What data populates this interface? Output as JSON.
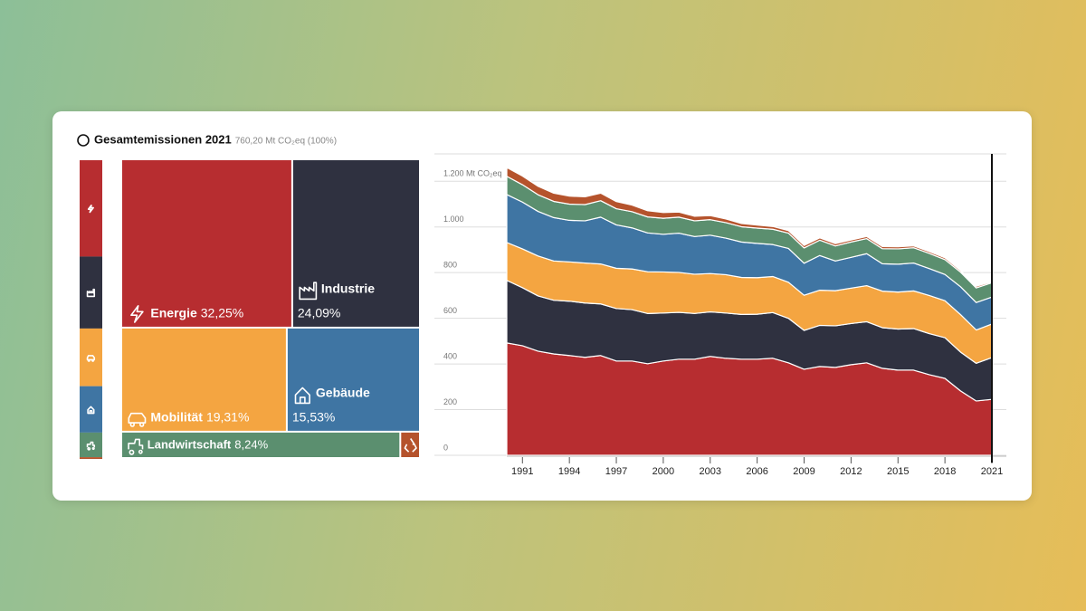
{
  "chart_data": [
    {
      "type": "treemap",
      "title": "Gesamtemissionen 2021",
      "subtitle": "760,20 Mt CO₂eq (100%)",
      "categories": [
        "Energie",
        "Industrie",
        "Mobilität",
        "Gebäude",
        "Landwirtschaft",
        null
      ],
      "values": [
        32.25,
        24.09,
        19.31,
        15.53,
        8.24,
        0.58
      ],
      "value_labels": [
        "32,25%",
        "24,09%",
        "19,31%",
        "15,53%",
        "8,24%",
        null
      ],
      "colors": [
        "#b72d30",
        "#2f3140",
        "#f4a541",
        "#3f75a3",
        "#5b8f6f",
        "#b5532c"
      ]
    },
    {
      "type": "area",
      "stacked": true,
      "x": [
        1990,
        1991,
        1992,
        1993,
        1994,
        1995,
        1996,
        1997,
        1998,
        1999,
        2000,
        2001,
        2002,
        2003,
        2004,
        2005,
        2006,
        2007,
        2008,
        2009,
        2010,
        2011,
        2012,
        2013,
        2014,
        2015,
        2016,
        2017,
        2018,
        2019,
        2020,
        2021
      ],
      "xlim": [
        1990,
        2021
      ],
      "xticks": [
        1991,
        1994,
        1997,
        2000,
        2003,
        2006,
        2009,
        2012,
        2015,
        2018,
        2021
      ],
      "ylim": [
        0,
        1320
      ],
      "yticks": [
        0,
        200,
        400,
        600,
        800,
        {
          "value": 1000,
          "label": "1.000"
        },
        {
          "value": 1200,
          "label": "1.200 Mt CO₂eq"
        }
      ],
      "grid": true,
      "series": [
        {
          "color": "#b72d30",
          "values": [
            492,
            480,
            456,
            444,
            437,
            429,
            437,
            413,
            413,
            401,
            413,
            421,
            421,
            433,
            425,
            421,
            421,
            425,
            405,
            377,
            389,
            385,
            397,
            405,
            381,
            373,
            373,
            353,
            337,
            282,
            238,
            245
          ]
        },
        {
          "color": "#2f3140",
          "values": [
            274,
            254,
            242,
            235,
            238,
            238,
            226,
            230,
            225,
            220,
            210,
            205,
            200,
            195,
            198,
            196,
            197,
            200,
            195,
            170,
            180,
            182,
            180,
            180,
            178,
            180,
            182,
            180,
            178,
            170,
            165,
            183
          ]
        },
        {
          "color": "#f4a541",
          "values": [
            166,
            170,
            175,
            172,
            172,
            175,
            175,
            176,
            178,
            183,
            180,
            175,
            172,
            168,
            168,
            162,
            160,
            158,
            158,
            154,
            154,
            154,
            155,
            158,
            160,
            162,
            165,
            167,
            162,
            164,
            146,
            147
          ]
        },
        {
          "color": "#3f75a3",
          "values": [
            210,
            205,
            195,
            190,
            182,
            185,
            205,
            190,
            180,
            170,
            165,
            172,
            165,
            168,
            160,
            155,
            150,
            140,
            148,
            140,
            152,
            130,
            135,
            140,
            120,
            122,
            122,
            118,
            115,
            122,
            120,
            118
          ]
        },
        {
          "color": "#5b8f6f",
          "values": [
            80,
            76,
            73,
            71,
            71,
            71,
            72,
            71,
            71,
            70,
            70,
            70,
            69,
            68,
            68,
            67,
            67,
            67,
            67,
            67,
            67,
            66,
            67,
            66,
            66,
            67,
            67,
            66,
            65,
            64,
            64,
            63
          ]
        },
        {
          "color": "#b5532c",
          "values": [
            38,
            38,
            37,
            36,
            35,
            34,
            33,
            31,
            29,
            27,
            25,
            22,
            20,
            18,
            16,
            14,
            13,
            12,
            11,
            11,
            10,
            10,
            9,
            9,
            9,
            9,
            8,
            8,
            8,
            7,
            7,
            4.4
          ]
        }
      ]
    }
  ]
}
